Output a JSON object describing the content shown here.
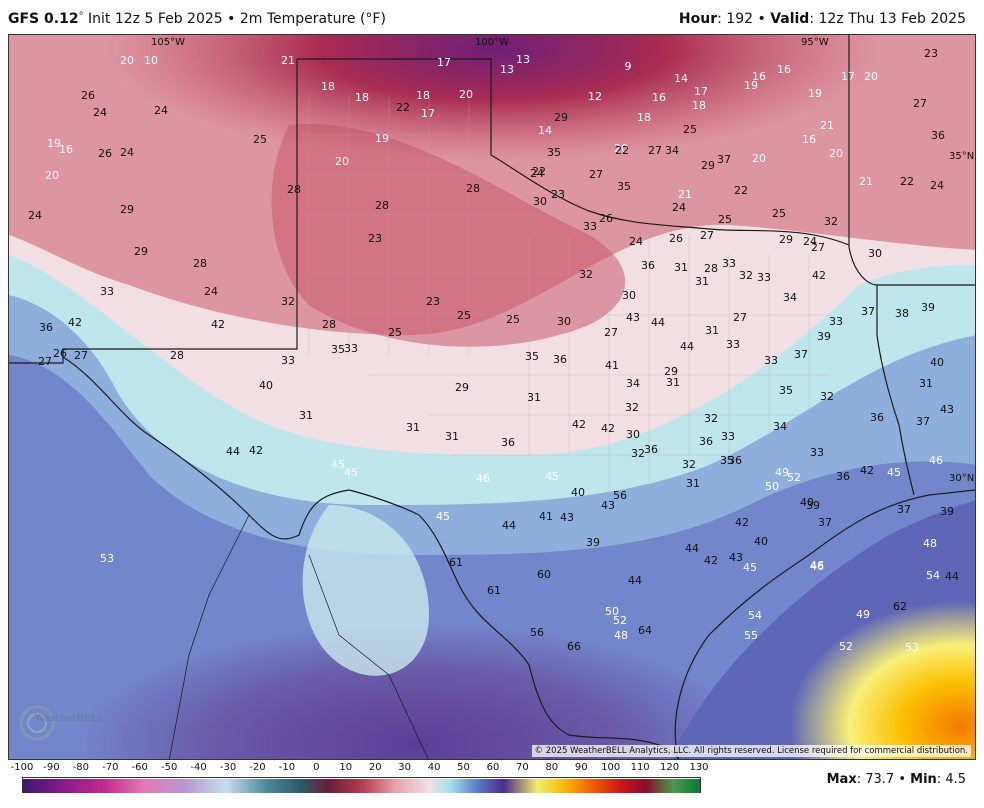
{
  "header": {
    "model": "GFS 0.12",
    "deg": "°",
    "init": "Init 12z 5 Feb 2025 • 2m Temperature (°F)",
    "hour_label": "Hour",
    "hour_value": ": 192 • ",
    "valid_label": "Valid",
    "valid_value": ": 12z Thu 13 Feb 2025"
  },
  "map": {
    "coord_labels": [
      "105°W",
      "100°W",
      "95°W",
      "35°N",
      "30°N"
    ],
    "copyright": "© 2025 WeatherBELL Analytics, LLC. All rights reserved. License required for commercial distribution.",
    "logo": "WeatherBELL",
    "values": [
      20,
      10,
      21,
      17,
      13,
      13,
      9,
      14,
      16,
      16,
      23,
      17,
      20,
      26,
      24,
      24,
      18,
      18,
      22,
      18,
      20,
      17,
      12,
      16,
      17,
      19,
      19,
      27,
      14,
      18,
      18,
      19,
      20,
      20,
      34,
      36,
      29,
      27,
      25,
      19,
      16,
      26,
      24,
      25,
      35,
      37,
      16,
      21,
      20,
      20,
      22,
      22,
      24,
      23,
      27,
      28,
      29,
      35,
      20,
      22,
      21,
      22,
      24,
      24,
      28,
      30,
      33,
      28,
      21,
      24,
      25,
      26,
      25,
      29,
      32,
      29,
      23,
      24,
      26,
      27,
      28,
      31,
      32,
      36,
      33,
      24,
      27,
      30,
      29,
      31,
      33,
      34,
      42,
      33,
      28,
      24,
      23,
      25,
      25,
      30,
      30,
      32,
      33,
      37,
      38,
      39,
      36,
      42,
      42,
      32,
      28,
      25,
      27,
      43,
      44,
      44,
      31,
      33,
      27,
      27,
      26,
      27,
      28,
      33,
      33,
      35,
      35,
      36,
      41,
      34,
      29,
      31,
      33,
      37,
      39,
      40,
      40,
      29,
      31,
      32,
      35,
      32,
      31,
      31,
      31,
      31,
      36,
      42,
      42,
      30,
      32,
      36,
      33,
      36,
      34,
      36,
      37,
      43,
      44,
      42,
      45,
      45,
      46,
      45,
      32,
      36,
      32,
      31,
      35,
      33,
      36,
      42,
      45,
      46,
      49,
      50,
      52,
      40,
      39,
      37,
      37,
      39,
      40,
      43,
      56,
      45,
      44,
      41,
      43,
      39,
      42,
      40,
      48,
      53,
      61,
      44,
      42,
      43,
      46,
      54,
      60,
      61,
      44,
      45,
      46,
      44,
      49,
      62,
      66,
      48,
      64,
      56,
      50,
      52,
      54,
      52,
      53,
      55
    ]
  },
  "colorbar": {
    "ticks": [
      "-100",
      "-90",
      "-80",
      "-70",
      "-60",
      "-50",
      "-40",
      "-30",
      "-20",
      "-10",
      "0",
      "10",
      "20",
      "30",
      "40",
      "50",
      "60",
      "70",
      "80",
      "90",
      "100",
      "110",
      "120",
      "130"
    ]
  },
  "stats": {
    "max_label": "Max",
    "max_value": "73.7",
    "sep": " • ",
    "min_label": "Min",
    "min_value": "4.5"
  }
}
